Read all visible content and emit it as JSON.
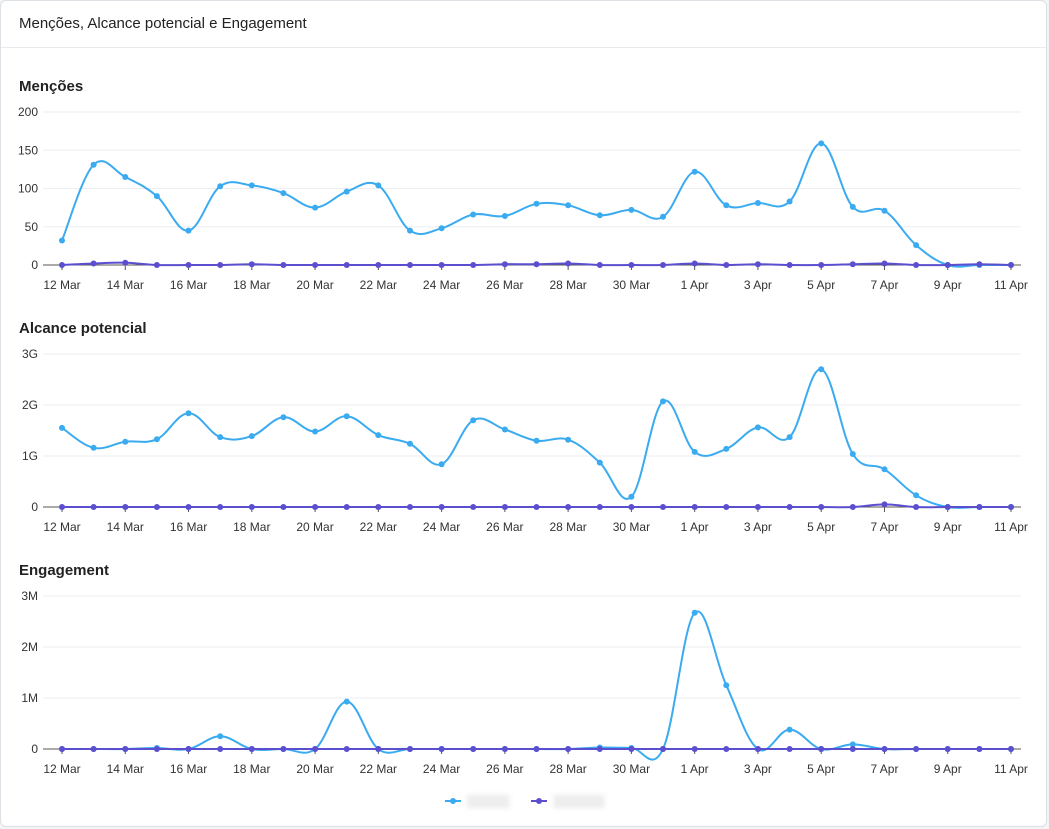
{
  "card": {
    "title": "Menções, Alcance potencial e Engagement"
  },
  "colors": {
    "series_a": "#3aabf0",
    "series_b": "#5b4fcf",
    "grid": "#eceef1",
    "axis": "#333333"
  },
  "chart_data": [
    {
      "type": "line",
      "title": "Menções",
      "categories": [
        "12 Mar",
        "13 Mar",
        "14 Mar",
        "15 Mar",
        "16 Mar",
        "17 Mar",
        "18 Mar",
        "19 Mar",
        "20 Mar",
        "21 Mar",
        "22 Mar",
        "23 Mar",
        "24 Mar",
        "25 Mar",
        "26 Mar",
        "27 Mar",
        "28 Mar",
        "29 Mar",
        "30 Mar",
        "31 Mar",
        "1 Apr",
        "2 Apr",
        "3 Apr",
        "4 Apr",
        "5 Apr",
        "6 Apr",
        "7 Apr",
        "8 Apr",
        "9 Apr",
        "10 Apr",
        "11 Apr"
      ],
      "tick_labels": [
        "12 Mar",
        "14 Mar",
        "16 Mar",
        "18 Mar",
        "20 Mar",
        "22 Mar",
        "24 Mar",
        "26 Mar",
        "28 Mar",
        "30 Mar",
        "1 Apr",
        "3 Apr",
        "5 Apr",
        "7 Apr",
        "9 Apr",
        "11 Apr"
      ],
      "y_ticks": [
        "0",
        "50",
        "100",
        "150",
        "200"
      ],
      "ylim": [
        0,
        200
      ],
      "grid": true,
      "series": [
        {
          "values": [
            32,
            131,
            115,
            90,
            45,
            103,
            104,
            94,
            75,
            96,
            104,
            45,
            48,
            66,
            64,
            80,
            78,
            65,
            72,
            63,
            122,
            78,
            81,
            83,
            159,
            76,
            71,
            26,
            0,
            0,
            0
          ]
        },
        {
          "values": [
            0,
            2,
            3,
            0,
            0,
            0,
            1,
            0,
            0,
            0,
            0,
            0,
            0,
            0,
            1,
            1,
            2,
            0,
            0,
            0,
            2,
            0,
            1,
            0,
            0,
            1,
            2,
            0,
            0,
            1,
            0
          ]
        }
      ]
    },
    {
      "type": "line",
      "title": "Alcance potencial",
      "categories": [
        "12 Mar",
        "13 Mar",
        "14 Mar",
        "15 Mar",
        "16 Mar",
        "17 Mar",
        "18 Mar",
        "19 Mar",
        "20 Mar",
        "21 Mar",
        "22 Mar",
        "23 Mar",
        "24 Mar",
        "25 Mar",
        "26 Mar",
        "27 Mar",
        "28 Mar",
        "29 Mar",
        "30 Mar",
        "31 Mar",
        "1 Apr",
        "2 Apr",
        "3 Apr",
        "4 Apr",
        "5 Apr",
        "6 Apr",
        "7 Apr",
        "8 Apr",
        "9 Apr",
        "10 Apr",
        "11 Apr"
      ],
      "tick_labels": [
        "12 Mar",
        "14 Mar",
        "16 Mar",
        "18 Mar",
        "20 Mar",
        "22 Mar",
        "24 Mar",
        "26 Mar",
        "28 Mar",
        "30 Mar",
        "1 Apr",
        "3 Apr",
        "5 Apr",
        "7 Apr",
        "9 Apr",
        "11 Apr"
      ],
      "y_ticks": [
        "0",
        "1G",
        "2G",
        "3G"
      ],
      "ylim": [
        0,
        3
      ],
      "unit": "G",
      "grid": true,
      "series": [
        {
          "values": [
            1.55,
            1.16,
            1.28,
            1.33,
            1.84,
            1.37,
            1.39,
            1.76,
            1.48,
            1.78,
            1.41,
            1.24,
            0.84,
            1.7,
            1.52,
            1.3,
            1.32,
            0.87,
            0.2,
            2.07,
            1.08,
            1.14,
            1.56,
            1.37,
            2.7,
            1.04,
            0.74,
            0.23,
            0,
            0,
            0
          ]
        },
        {
          "values": [
            0,
            0,
            0,
            0,
            0,
            0,
            0,
            0,
            0,
            0,
            0,
            0,
            0,
            0,
            0,
            0,
            0,
            0,
            0,
            0,
            0,
            0,
            0,
            0,
            0,
            0,
            0.05,
            0,
            0,
            0,
            0
          ]
        }
      ]
    },
    {
      "type": "line",
      "title": "Engagement",
      "categories": [
        "12 Mar",
        "13 Mar",
        "14 Mar",
        "15 Mar",
        "16 Mar",
        "17 Mar",
        "18 Mar",
        "19 Mar",
        "20 Mar",
        "21 Mar",
        "22 Mar",
        "23 Mar",
        "24 Mar",
        "25 Mar",
        "26 Mar",
        "27 Mar",
        "28 Mar",
        "29 Mar",
        "30 Mar",
        "31 Mar",
        "1 Apr",
        "2 Apr",
        "3 Apr",
        "4 Apr",
        "5 Apr",
        "6 Apr",
        "7 Apr",
        "8 Apr",
        "9 Apr",
        "10 Apr",
        "11 Apr"
      ],
      "tick_labels": [
        "12 Mar",
        "14 Mar",
        "16 Mar",
        "18 Mar",
        "20 Mar",
        "22 Mar",
        "24 Mar",
        "26 Mar",
        "28 Mar",
        "30 Mar",
        "1 Apr",
        "3 Apr",
        "5 Apr",
        "7 Apr",
        "9 Apr",
        "11 Apr"
      ],
      "y_ticks": [
        "0",
        "1M",
        "2M",
        "3M"
      ],
      "ylim": [
        0,
        3
      ],
      "unit": "M",
      "grid": true,
      "series": [
        {
          "values": [
            0,
            0,
            0,
            0.02,
            0,
            0.25,
            0,
            0,
            0,
            0.93,
            0,
            0,
            0,
            0,
            0,
            0,
            0,
            0.03,
            0.02,
            0,
            2.67,
            1.25,
            0,
            0.38,
            0,
            0.09,
            0,
            0,
            0,
            0,
            0
          ]
        },
        {
          "values": [
            0,
            0,
            0,
            0,
            0,
            0,
            0,
            0,
            0,
            0,
            0,
            0,
            0,
            0,
            0,
            0,
            0,
            0,
            0,
            0,
            0,
            0,
            0,
            0,
            0,
            0,
            0,
            0,
            0,
            0,
            0
          ]
        }
      ]
    }
  ]
}
